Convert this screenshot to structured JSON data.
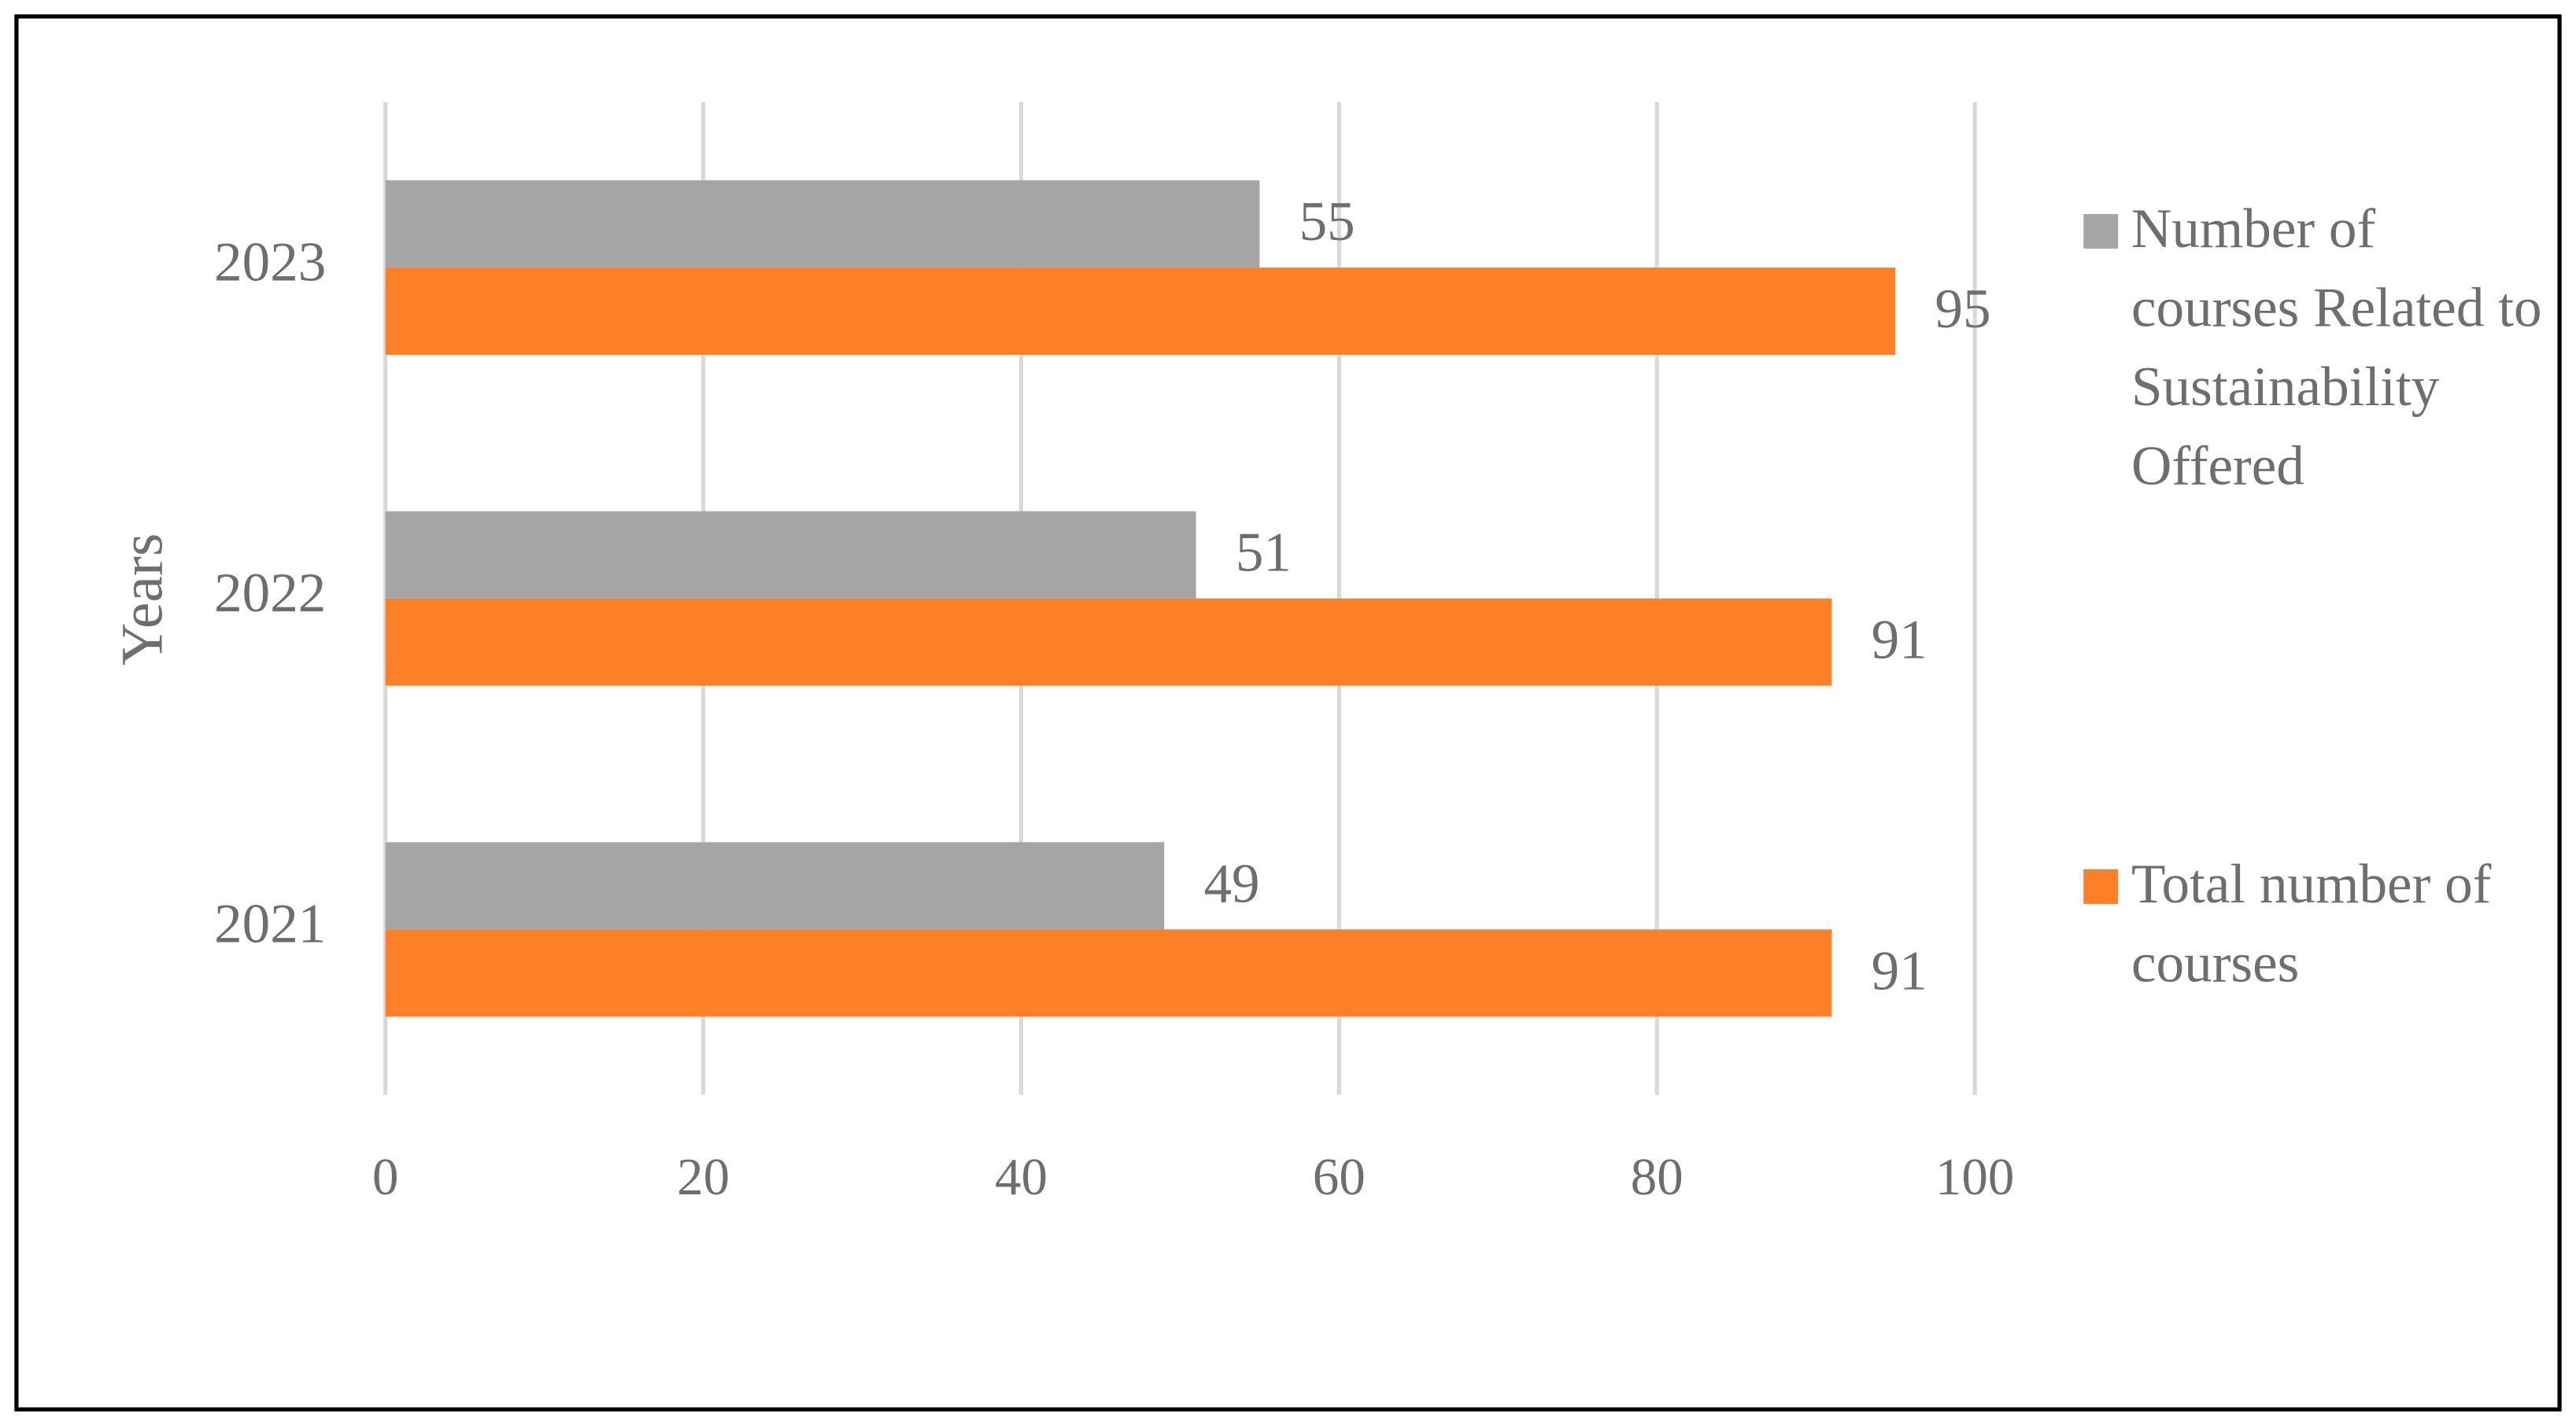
{
  "chart_data": {
    "type": "barh",
    "ylabel": "Years",
    "categories": [
      "2021",
      "2022",
      "2023"
    ],
    "series": [
      {
        "name": "Number of courses Related to Sustainability Offered",
        "color": "#a5a5a5",
        "values": [
          49,
          51,
          55
        ]
      },
      {
        "name": "Total number of courses",
        "color": "#fd7f28",
        "values": [
          91,
          91,
          95
        ]
      }
    ],
    "xlim": [
      0,
      100
    ],
    "xticks": [
      0,
      20,
      40,
      60,
      80,
      100
    ],
    "grid": true,
    "legend": "right"
  }
}
